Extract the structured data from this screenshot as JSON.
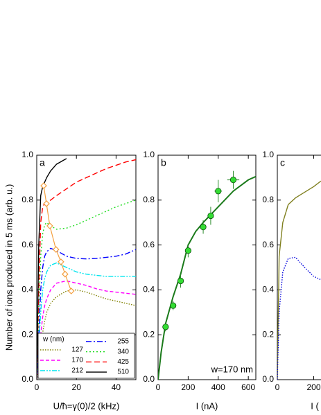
{
  "chart_data": [
    {
      "type": "line",
      "panel_label": "a",
      "ylabel": "Number of ions produced in 5 ms (arb. u.)",
      "xlabel": "U/ħ=γ(0)/2 (kHz)",
      "xlim": [
        0,
        50
      ],
      "xticks": [
        0,
        20,
        40
      ],
      "ylim": [
        0,
        1
      ],
      "yticks": [
        {
          "value": 0,
          "label": "0.0"
        },
        0.2,
        0.4,
        0.6,
        0.8,
        {
          "value": 1,
          "label": "1.0"
        }
      ],
      "legend_title": "w (nm)",
      "x": [
        0,
        1,
        2,
        3,
        4,
        5,
        7,
        10,
        15,
        20,
        25,
        30,
        35,
        40,
        45,
        50
      ],
      "series": [
        {
          "name": "127",
          "color": "#808000",
          "dash": "1.5,2",
          "values": [
            0,
            0.08,
            0.15,
            0.21,
            0.26,
            0.3,
            0.34,
            0.37,
            0.395,
            0.4,
            0.39,
            0.375,
            0.36,
            0.35,
            0.34,
            0.33
          ]
        },
        {
          "name": "170",
          "color": "#ff00ff",
          "dash": "5,3",
          "values": [
            0,
            0.1,
            0.2,
            0.28,
            0.33,
            0.36,
            0.4,
            0.43,
            0.44,
            0.43,
            0.42,
            0.405,
            0.395,
            0.39,
            0.385,
            0.38
          ]
        },
        {
          "name": "212",
          "color": "#00e5ee",
          "dash": "7,2,2,2,2,2",
          "values": [
            0,
            0.15,
            0.3,
            0.4,
            0.45,
            0.48,
            0.51,
            0.52,
            0.5,
            0.48,
            0.47,
            0.465,
            0.46,
            0.46,
            0.46,
            0.46
          ]
        },
        {
          "name": "255",
          "color": "#0000ff",
          "dash": "8,3,2,3",
          "values": [
            0,
            0.2,
            0.4,
            0.5,
            0.55,
            0.57,
            0.585,
            0.575,
            0.55,
            0.54,
            0.538,
            0.54,
            0.545,
            0.55,
            0.56,
            0.58
          ]
        },
        {
          "name": "340",
          "color": "#22dd22",
          "dash": "2,3",
          "values": [
            0,
            0.3,
            0.55,
            0.65,
            0.69,
            0.7,
            0.685,
            0.67,
            0.675,
            0.69,
            0.71,
            0.73,
            0.75,
            0.77,
            0.785,
            0.8
          ]
        },
        {
          "name": "425",
          "color": "#ff0000",
          "dash": "8,4",
          "values": [
            0,
            0.4,
            0.7,
            0.77,
            0.785,
            0.79,
            0.8,
            0.82,
            0.85,
            0.88,
            0.9,
            0.92,
            0.94,
            0.955,
            0.97,
            0.98
          ]
        },
        {
          "name": "510",
          "color": "#000000",
          "dash": "none",
          "values": [
            0,
            0.6,
            0.82,
            0.86,
            0.88,
            0.9,
            0.93,
            0.96,
            0.985,
            null,
            null,
            null,
            null,
            null,
            null,
            null
          ]
        }
      ],
      "markers": {
        "color": "#f4a040",
        "x": [
          3.5,
          4.9,
          6.6,
          9.7,
          12.2,
          14.3,
          17.4
        ],
        "values": [
          0.864,
          0.784,
          0.685,
          0.58,
          0.525,
          0.47,
          0.395
        ]
      }
    },
    {
      "type": "scatter",
      "panel_label": "b",
      "annotation": "w=170 nm",
      "xlabel": "I (nA)",
      "xlim": [
        0,
        650
      ],
      "xticks": [
        0,
        200,
        400,
        600
      ],
      "ylim": [
        0,
        1
      ],
      "yticks": [
        {
          "value": 0,
          "label": "0.0"
        },
        0.2,
        0.4,
        0.6,
        0.8,
        {
          "value": 1,
          "label": "1.0"
        }
      ],
      "color": "#33dd33",
      "x": [
        50,
        100,
        150,
        200,
        300,
        350,
        400,
        500
      ],
      "values": [
        0.235,
        0.33,
        0.44,
        0.575,
        0.68,
        0.73,
        0.84,
        0.89
      ],
      "xerr": [
        10,
        10,
        15,
        15,
        20,
        20,
        25,
        40
      ],
      "yerr": [
        0.02,
        0.02,
        0.03,
        0.03,
        0.03,
        0.04,
        0.05,
        0.04
      ],
      "fit": {
        "color": "#1a7a1a",
        "x": [
          0,
          20,
          50,
          100,
          150,
          200,
          250,
          300,
          400,
          500,
          600,
          650
        ],
        "values": [
          0,
          0.12,
          0.25,
          0.37,
          0.47,
          0.6,
          0.66,
          0.7,
          0.77,
          0.84,
          0.89,
          0.905
        ]
      }
    },
    {
      "type": "line",
      "panel_label": "c",
      "xlabel": "I (",
      "xlim": [
        0,
        240
      ],
      "xticks": [
        0,
        200
      ],
      "ylim": [
        0,
        1
      ],
      "yticks": [
        {
          "value": 0,
          "label": "0.0"
        },
        0.2,
        0.4,
        0.6,
        0.8,
        {
          "value": 1,
          "label": "1.0"
        }
      ],
      "x": [
        0,
        10,
        30,
        60,
        100,
        150,
        200,
        240
      ],
      "series": [
        {
          "color": "#808020",
          "dash": "none",
          "values": [
            0,
            0.55,
            0.7,
            0.78,
            0.81,
            0.835,
            0.86,
            0.885
          ]
        },
        {
          "color": "#0000dd",
          "dash": "1.5,2",
          "values": [
            0,
            0.3,
            0.48,
            0.54,
            0.545,
            0.5,
            0.46,
            0.445
          ]
        }
      ]
    }
  ]
}
